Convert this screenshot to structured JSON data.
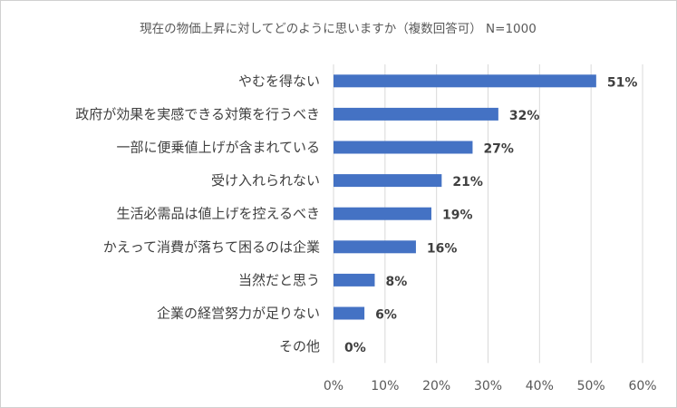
{
  "chart_data": {
    "type": "bar",
    "orientation": "horizontal",
    "title": "現在の物価上昇に対してどのように思いますか（複数回答可） N=1000",
    "categories": [
      "やむを得ない",
      "政府が効果を実感できる対策を行うべき",
      "一部に便乗値上げが含まれている",
      "受け入れられない",
      "生活必需品は値上げを控えるべき",
      "かえって消費が落ちて困るのは企業",
      "当然だと思う",
      "企業の経営努力が足りない",
      "その他"
    ],
    "values": [
      51,
      32,
      27,
      21,
      19,
      16,
      8,
      6,
      0
    ],
    "value_labels": [
      "51%",
      "32%",
      "27%",
      "21%",
      "19%",
      "16%",
      "8%",
      "6%",
      "0%"
    ],
    "x_ticks": [
      "0%",
      "10%",
      "20%",
      "30%",
      "40%",
      "50%",
      "60%"
    ],
    "xlim": [
      0,
      60
    ],
    "grid": "vertical",
    "bar_color": "#4472c4"
  }
}
